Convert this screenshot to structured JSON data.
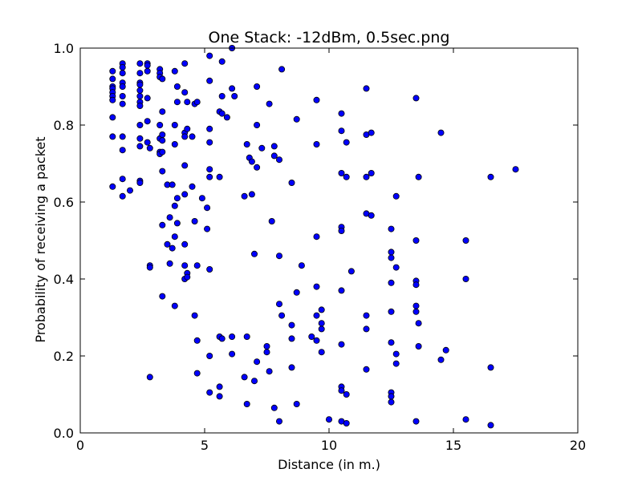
{
  "chart_data": {
    "type": "scatter",
    "title": "One Stack: -12dBm, 0.5sec.png",
    "xlabel": "Distance (in m.)",
    "ylabel": "Probability of receiving a packet",
    "xlim": [
      0,
      20
    ],
    "ylim": [
      0,
      1.0
    ],
    "xticks": [
      "0",
      "5",
      "10",
      "15",
      "20"
    ],
    "yticks": [
      "0.0",
      "0.2",
      "0.4",
      "0.6",
      "0.8",
      "1.0"
    ],
    "grid": false,
    "marker_color": "#0000ff",
    "marker_edge_color": "#000000",
    "points": [
      [
        1.3,
        0.94
      ],
      [
        1.3,
        0.92
      ],
      [
        1.3,
        0.9
      ],
      [
        1.3,
        0.895
      ],
      [
        1.3,
        0.885
      ],
      [
        1.3,
        0.875
      ],
      [
        1.3,
        0.865
      ],
      [
        1.3,
        0.82
      ],
      [
        1.3,
        0.77
      ],
      [
        1.3,
        0.64
      ],
      [
        1.7,
        0.96
      ],
      [
        1.7,
        0.95
      ],
      [
        1.7,
        0.935
      ],
      [
        1.7,
        0.91
      ],
      [
        1.7,
        0.9
      ],
      [
        1.7,
        0.875
      ],
      [
        1.7,
        0.855
      ],
      [
        1.7,
        0.77
      ],
      [
        1.7,
        0.735
      ],
      [
        1.7,
        0.66
      ],
      [
        1.7,
        0.615
      ],
      [
        2.0,
        0.63
      ],
      [
        2.4,
        0.96
      ],
      [
        2.4,
        0.935
      ],
      [
        2.4,
        0.91
      ],
      [
        2.4,
        0.905
      ],
      [
        2.4,
        0.89
      ],
      [
        2.4,
        0.875
      ],
      [
        2.4,
        0.86
      ],
      [
        2.4,
        0.85
      ],
      [
        2.4,
        0.8
      ],
      [
        2.4,
        0.765
      ],
      [
        2.4,
        0.745
      ],
      [
        2.4,
        0.655
      ],
      [
        2.4,
        0.65
      ],
      [
        2.7,
        0.96
      ],
      [
        2.7,
        0.955
      ],
      [
        2.7,
        0.94
      ],
      [
        2.7,
        0.87
      ],
      [
        2.7,
        0.81
      ],
      [
        2.7,
        0.755
      ],
      [
        2.8,
        0.74
      ],
      [
        2.8,
        0.435
      ],
      [
        2.8,
        0.43
      ],
      [
        2.8,
        0.145
      ],
      [
        3.2,
        0.945
      ],
      [
        3.2,
        0.935
      ],
      [
        3.2,
        0.925
      ],
      [
        3.2,
        0.8
      ],
      [
        3.2,
        0.765
      ],
      [
        3.2,
        0.73
      ],
      [
        3.2,
        0.725
      ],
      [
        3.3,
        0.92
      ],
      [
        3.3,
        0.835
      ],
      [
        3.3,
        0.775
      ],
      [
        3.3,
        0.76
      ],
      [
        3.3,
        0.73
      ],
      [
        3.3,
        0.68
      ],
      [
        3.3,
        0.54
      ],
      [
        3.3,
        0.355
      ],
      [
        3.5,
        0.645
      ],
      [
        3.5,
        0.49
      ],
      [
        3.6,
        0.56
      ],
      [
        3.6,
        0.44
      ],
      [
        3.7,
        0.645
      ],
      [
        3.7,
        0.48
      ],
      [
        3.8,
        0.94
      ],
      [
        3.8,
        0.8
      ],
      [
        3.8,
        0.75
      ],
      [
        3.8,
        0.59
      ],
      [
        3.8,
        0.51
      ],
      [
        3.8,
        0.33
      ],
      [
        3.9,
        0.9
      ],
      [
        3.9,
        0.86
      ],
      [
        3.9,
        0.61
      ],
      [
        3.9,
        0.545
      ],
      [
        4.2,
        0.96
      ],
      [
        4.2,
        0.885
      ],
      [
        4.2,
        0.78
      ],
      [
        4.2,
        0.77
      ],
      [
        4.2,
        0.695
      ],
      [
        4.2,
        0.62
      ],
      [
        4.2,
        0.49
      ],
      [
        4.2,
        0.435
      ],
      [
        4.2,
        0.4
      ],
      [
        4.3,
        0.86
      ],
      [
        4.3,
        0.79
      ],
      [
        4.3,
        0.415
      ],
      [
        4.3,
        0.405
      ],
      [
        4.5,
        0.77
      ],
      [
        4.5,
        0.64
      ],
      [
        4.6,
        0.855
      ],
      [
        4.6,
        0.55
      ],
      [
        4.6,
        0.305
      ],
      [
        4.7,
        0.86
      ],
      [
        4.7,
        0.435
      ],
      [
        4.7,
        0.24
      ],
      [
        4.7,
        0.155
      ],
      [
        4.9,
        0.61
      ],
      [
        5.1,
        0.53
      ],
      [
        5.1,
        0.585
      ],
      [
        5.2,
        0.98
      ],
      [
        5.2,
        0.915
      ],
      [
        5.2,
        0.79
      ],
      [
        5.2,
        0.755
      ],
      [
        5.2,
        0.685
      ],
      [
        5.2,
        0.665
      ],
      [
        5.2,
        0.425
      ],
      [
        5.2,
        0.2
      ],
      [
        5.2,
        0.105
      ],
      [
        5.6,
        0.835
      ],
      [
        5.6,
        0.665
      ],
      [
        5.6,
        0.25
      ],
      [
        5.6,
        0.12
      ],
      [
        5.6,
        0.095
      ],
      [
        5.7,
        0.965
      ],
      [
        5.7,
        0.875
      ],
      [
        5.7,
        0.83
      ],
      [
        5.7,
        0.245
      ],
      [
        5.9,
        0.82
      ],
      [
        6.1,
        1.0
      ],
      [
        6.1,
        0.895
      ],
      [
        6.1,
        0.25
      ],
      [
        6.1,
        0.205
      ],
      [
        6.2,
        0.875
      ],
      [
        6.6,
        0.615
      ],
      [
        6.6,
        0.145
      ],
      [
        6.7,
        0.75
      ],
      [
        6.7,
        0.25
      ],
      [
        6.7,
        0.075
      ],
      [
        6.8,
        0.715
      ],
      [
        6.9,
        0.62
      ],
      [
        6.9,
        0.705
      ],
      [
        7.0,
        0.465
      ],
      [
        7.0,
        0.135
      ],
      [
        7.1,
        0.9
      ],
      [
        7.1,
        0.8
      ],
      [
        7.1,
        0.69
      ],
      [
        7.1,
        0.185
      ],
      [
        7.3,
        0.74
      ],
      [
        7.5,
        0.225
      ],
      [
        7.5,
        0.21
      ],
      [
        7.6,
        0.855
      ],
      [
        7.6,
        0.16
      ],
      [
        7.7,
        0.55
      ],
      [
        7.8,
        0.745
      ],
      [
        7.8,
        0.72
      ],
      [
        7.8,
        0.065
      ],
      [
        8.0,
        0.71
      ],
      [
        8.0,
        0.46
      ],
      [
        8.0,
        0.335
      ],
      [
        8.0,
        0.03
      ],
      [
        8.1,
        0.945
      ],
      [
        8.1,
        0.305
      ],
      [
        8.5,
        0.65
      ],
      [
        8.5,
        0.28
      ],
      [
        8.5,
        0.245
      ],
      [
        8.5,
        0.17
      ],
      [
        8.7,
        0.815
      ],
      [
        8.7,
        0.365
      ],
      [
        8.7,
        0.075
      ],
      [
        8.9,
        0.435
      ],
      [
        9.3,
        0.25
      ],
      [
        9.5,
        0.865
      ],
      [
        9.5,
        0.75
      ],
      [
        9.5,
        0.51
      ],
      [
        9.5,
        0.38
      ],
      [
        9.5,
        0.305
      ],
      [
        9.5,
        0.24
      ],
      [
        9.7,
        0.32
      ],
      [
        9.7,
        0.285
      ],
      [
        9.7,
        0.27
      ],
      [
        9.7,
        0.21
      ],
      [
        10.0,
        0.035
      ],
      [
        10.5,
        0.83
      ],
      [
        10.5,
        0.785
      ],
      [
        10.5,
        0.675
      ],
      [
        10.5,
        0.535
      ],
      [
        10.5,
        0.525
      ],
      [
        10.5,
        0.37
      ],
      [
        10.5,
        0.23
      ],
      [
        10.5,
        0.12
      ],
      [
        10.5,
        0.11
      ],
      [
        10.5,
        0.03
      ],
      [
        10.7,
        0.755
      ],
      [
        10.7,
        0.665
      ],
      [
        10.7,
        0.1
      ],
      [
        10.7,
        0.025
      ],
      [
        10.9,
        0.42
      ],
      [
        11.5,
        0.895
      ],
      [
        11.5,
        0.775
      ],
      [
        11.5,
        0.665
      ],
      [
        11.5,
        0.57
      ],
      [
        11.5,
        0.305
      ],
      [
        11.5,
        0.27
      ],
      [
        11.5,
        0.165
      ],
      [
        11.7,
        0.78
      ],
      [
        11.7,
        0.675
      ],
      [
        11.7,
        0.565
      ],
      [
        12.5,
        0.53
      ],
      [
        12.5,
        0.47
      ],
      [
        12.5,
        0.455
      ],
      [
        12.5,
        0.39
      ],
      [
        12.5,
        0.315
      ],
      [
        12.5,
        0.235
      ],
      [
        12.5,
        0.105
      ],
      [
        12.5,
        0.095
      ],
      [
        12.5,
        0.08
      ],
      [
        12.7,
        0.615
      ],
      [
        12.7,
        0.43
      ],
      [
        12.7,
        0.205
      ],
      [
        12.7,
        0.18
      ],
      [
        13.5,
        0.87
      ],
      [
        13.5,
        0.5
      ],
      [
        13.5,
        0.395
      ],
      [
        13.5,
        0.385
      ],
      [
        13.5,
        0.33
      ],
      [
        13.5,
        0.315
      ],
      [
        13.5,
        0.03
      ],
      [
        13.6,
        0.665
      ],
      [
        13.6,
        0.285
      ],
      [
        13.6,
        0.225
      ],
      [
        14.5,
        0.78
      ],
      [
        14.5,
        0.19
      ],
      [
        14.7,
        0.215
      ],
      [
        15.5,
        0.5
      ],
      [
        15.5,
        0.4
      ],
      [
        15.5,
        0.035
      ],
      [
        16.5,
        0.665
      ],
      [
        16.5,
        0.17
      ],
      [
        16.5,
        0.02
      ],
      [
        17.5,
        0.685
      ]
    ]
  }
}
